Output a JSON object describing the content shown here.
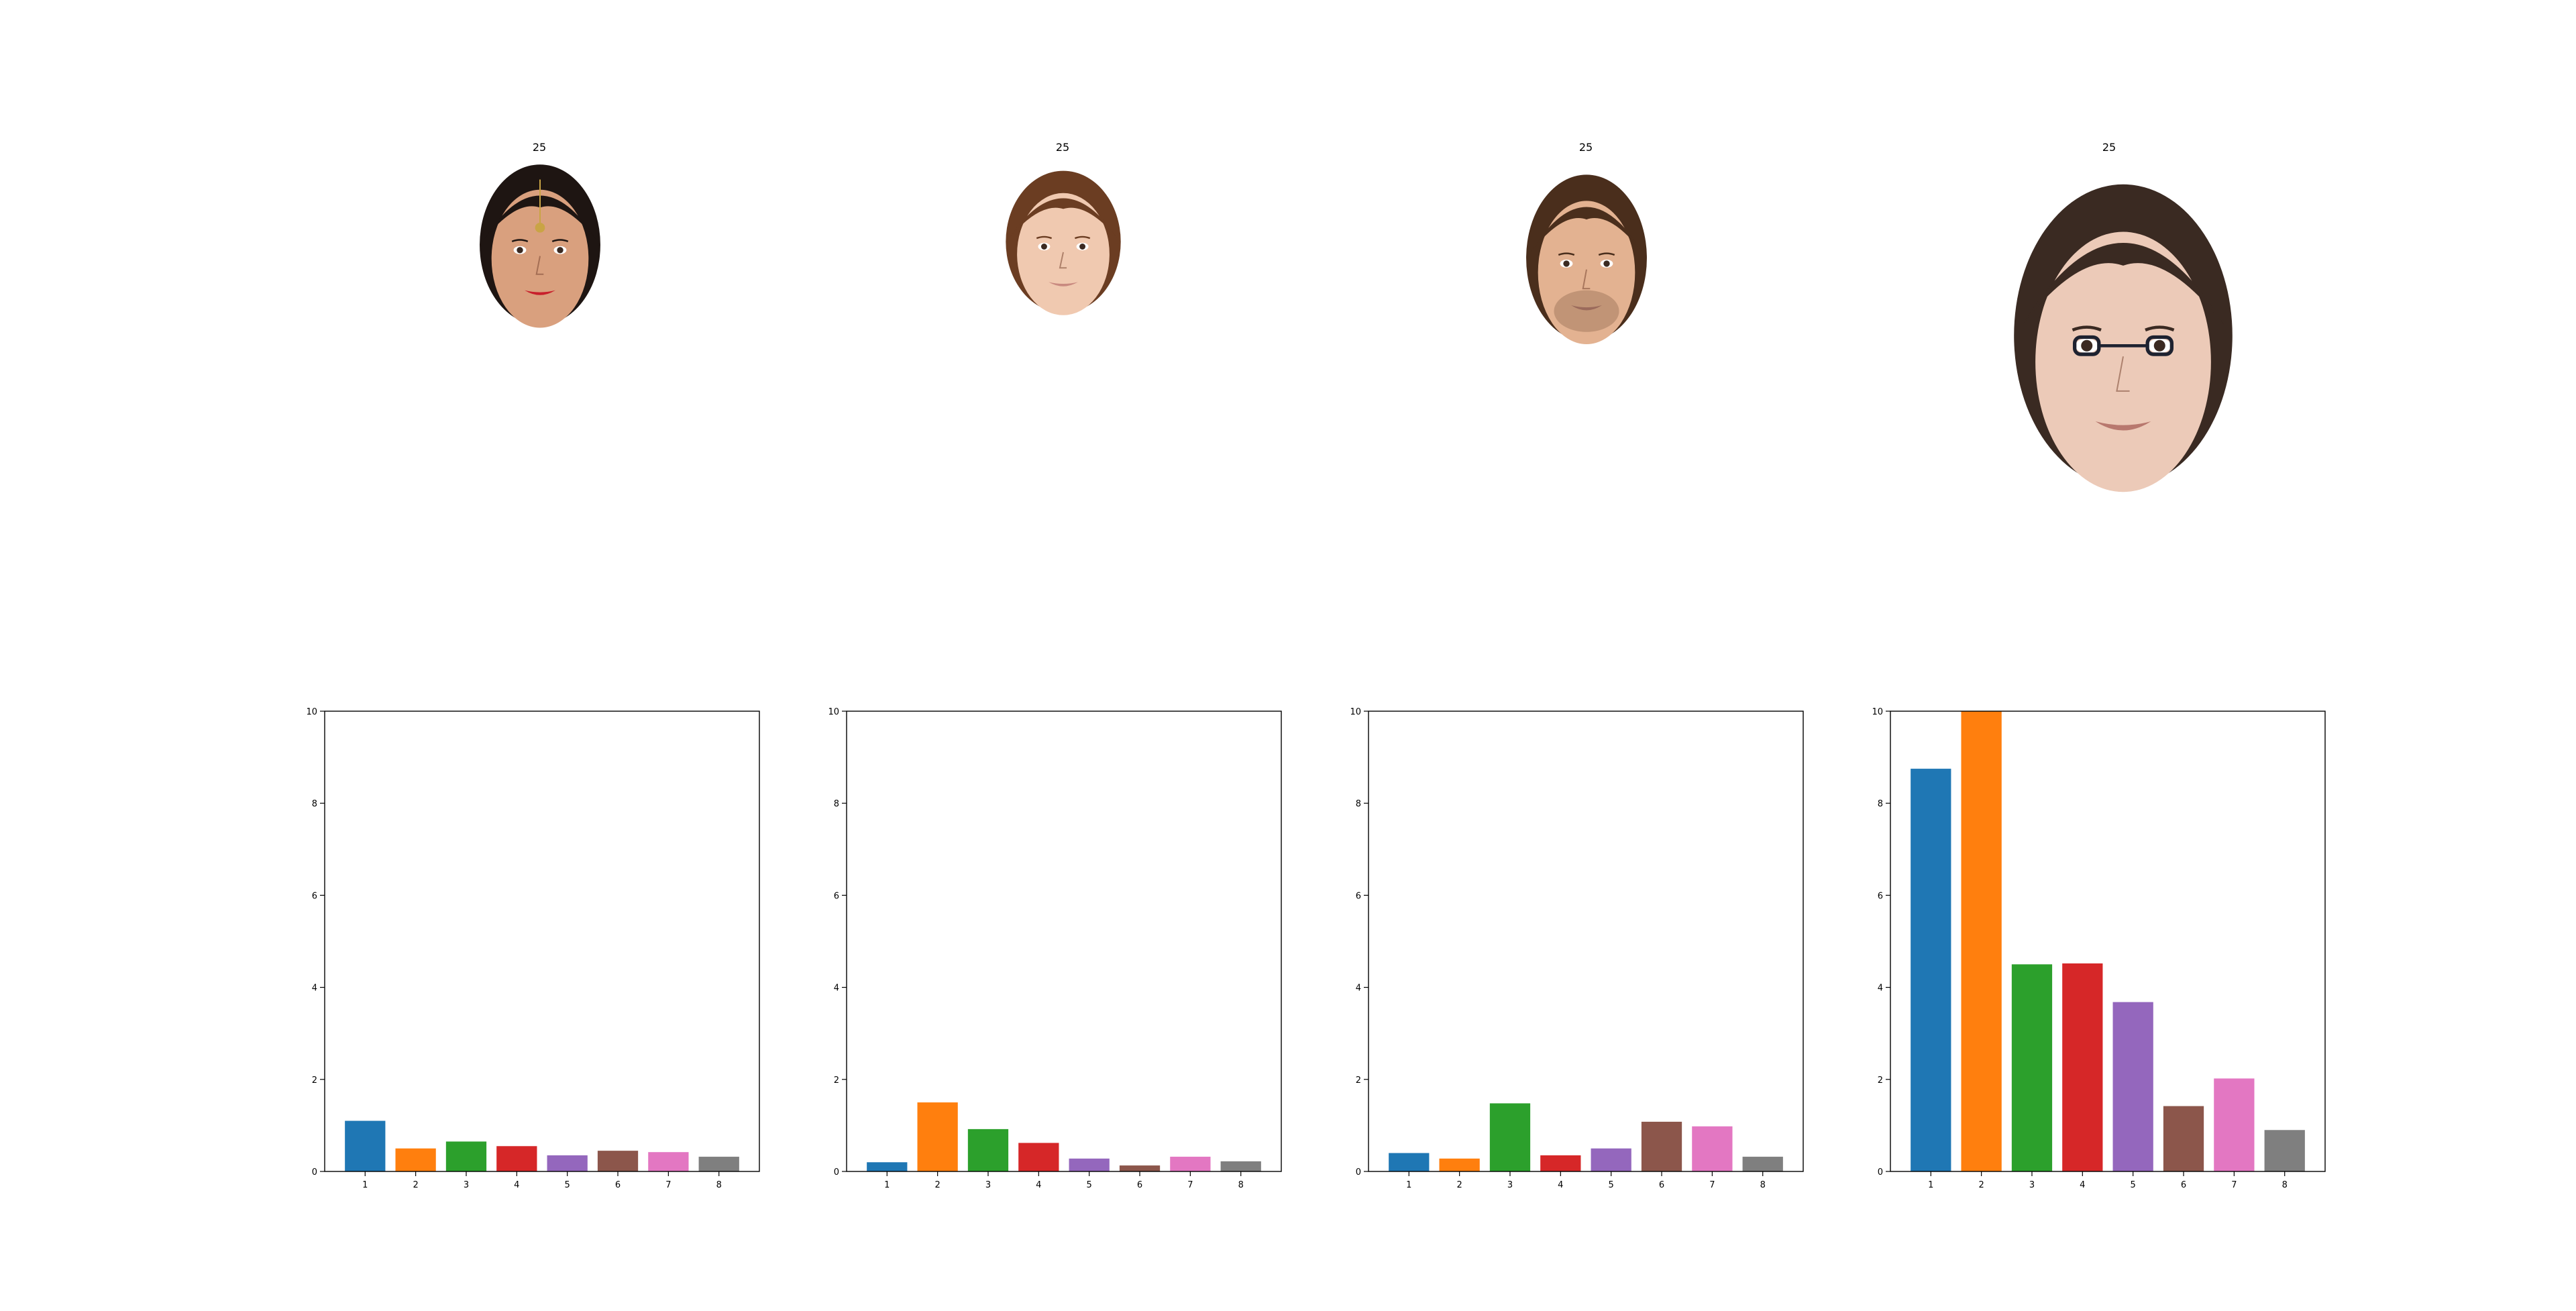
{
  "panels": [
    {
      "face_title": "25",
      "face": {
        "skin": "#d9a07e",
        "hair": "#1e1512",
        "lips": "#c8202c",
        "accessory": "forehead-jewelry"
      },
      "chart_data": {
        "type": "bar",
        "categories": [
          "1",
          "2",
          "3",
          "4",
          "5",
          "6",
          "7",
          "8"
        ],
        "values": [
          1.1,
          0.5,
          0.65,
          0.55,
          0.35,
          0.45,
          0.42,
          0.32
        ],
        "ylim": [
          0,
          10
        ],
        "yticks": [
          "0",
          "2",
          "4",
          "6",
          "8",
          "10"
        ],
        "colors": [
          "#1f77b4",
          "#ff7f0e",
          "#2ca02c",
          "#d62728",
          "#9467bd",
          "#8c564b",
          "#e377c2",
          "#7f7f7f"
        ]
      }
    },
    {
      "face_title": "25",
      "face": {
        "skin": "#f0c9b0",
        "hair": "#6b3d22",
        "lips": "#c98a80",
        "accessory": "none"
      },
      "chart_data": {
        "type": "bar",
        "categories": [
          "1",
          "2",
          "3",
          "4",
          "5",
          "6",
          "7",
          "8"
        ],
        "values": [
          0.2,
          1.5,
          0.92,
          0.62,
          0.28,
          0.13,
          0.32,
          0.22
        ],
        "ylim": [
          0,
          10
        ],
        "yticks": [
          "0",
          "2",
          "4",
          "6",
          "8",
          "10"
        ],
        "colors": [
          "#1f77b4",
          "#ff7f0e",
          "#2ca02c",
          "#d62728",
          "#9467bd",
          "#8c564b",
          "#e377c2",
          "#7f7f7f"
        ]
      }
    },
    {
      "face_title": "25",
      "face": {
        "skin": "#e3b291",
        "hair": "#4a2e1c",
        "lips": "#b07a6c",
        "accessory": "stubble"
      },
      "chart_data": {
        "type": "bar",
        "categories": [
          "1",
          "2",
          "3",
          "4",
          "5",
          "6",
          "7",
          "8"
        ],
        "values": [
          0.4,
          0.28,
          1.48,
          0.35,
          0.5,
          1.08,
          0.98,
          0.32
        ],
        "ylim": [
          0,
          10
        ],
        "yticks": [
          "0",
          "2",
          "4",
          "6",
          "8",
          "10"
        ],
        "colors": [
          "#1f77b4",
          "#ff7f0e",
          "#2ca02c",
          "#d62728",
          "#9467bd",
          "#8c564b",
          "#e377c2",
          "#7f7f7f"
        ]
      }
    },
    {
      "face_title": "25",
      "face": {
        "skin": "#eccab8",
        "hair": "#3a2a22",
        "lips": "#b8786e",
        "accessory": "glasses"
      },
      "chart_data": {
        "type": "bar",
        "categories": [
          "1",
          "2",
          "3",
          "4",
          "5",
          "6",
          "7",
          "8"
        ],
        "values": [
          8.75,
          10.0,
          4.5,
          4.52,
          3.68,
          1.42,
          2.02,
          0.9
        ],
        "ylim": [
          0,
          10
        ],
        "yticks": [
          "0",
          "2",
          "4",
          "6",
          "8",
          "10"
        ],
        "colors": [
          "#1f77b4",
          "#ff7f0e",
          "#2ca02c",
          "#d62728",
          "#9467bd",
          "#8c564b",
          "#e377c2",
          "#7f7f7f"
        ]
      }
    }
  ]
}
